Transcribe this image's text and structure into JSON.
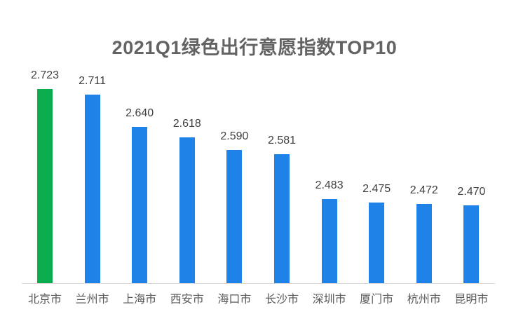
{
  "chart_data": {
    "type": "bar",
    "title": "2021Q1绿色出行意愿指数TOP10",
    "categories": [
      "北京市",
      "兰州市",
      "上海市",
      "西安市",
      "海口市",
      "长沙市",
      "深圳市",
      "厦门市",
      "杭州市",
      "昆明市"
    ],
    "values": [
      2.723,
      2.711,
      2.64,
      2.618,
      2.59,
      2.581,
      2.483,
      2.475,
      2.472,
      2.47
    ],
    "value_labels": [
      "2.723",
      "2.711",
      "2.640",
      "2.618",
      "2.590",
      "2.581",
      "2.483",
      "2.475",
      "2.472",
      "2.470"
    ],
    "xlabel": "",
    "ylabel": "",
    "ylim": [
      2.3,
      2.76
    ],
    "grid": false,
    "legend": null,
    "highlight_index": 0,
    "colors": {
      "highlight_bar": "#0bad4f",
      "default_bar": "#1f82e8",
      "axis_line": "#d9d9d9",
      "title_text": "#636363",
      "value_label_text": "#404040",
      "category_label_text": "#595959"
    }
  }
}
